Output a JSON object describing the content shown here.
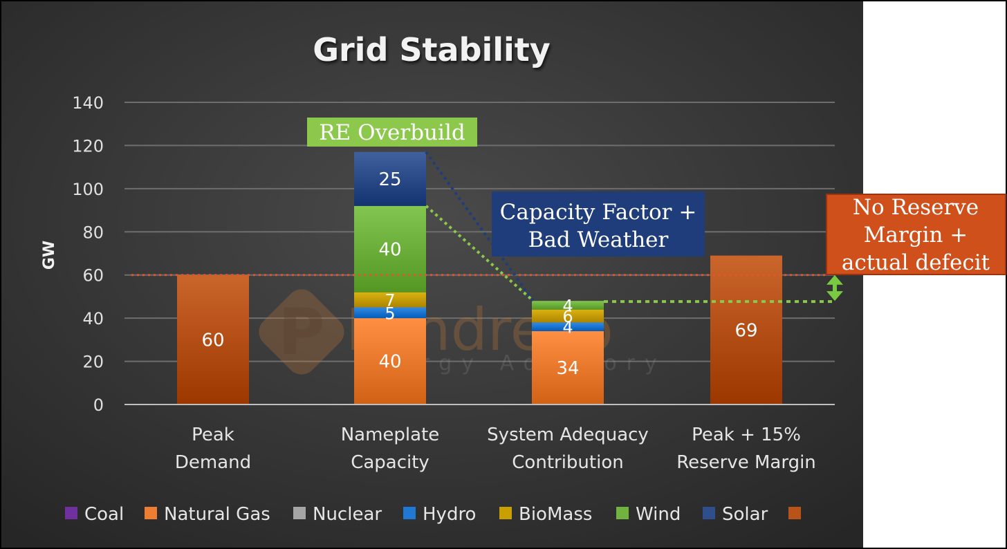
{
  "chart_data": {
    "type": "bar",
    "stacked": true,
    "title": "Grid Stability",
    "ylabel": "GW",
    "xlabel": "",
    "ylim": [
      0,
      140
    ],
    "yticks": [
      0,
      20,
      40,
      60,
      80,
      100,
      120,
      140
    ],
    "grid": true,
    "categories": [
      [
        "Peak",
        "Demand"
      ],
      [
        "Nameplate",
        "Capacity"
      ],
      [
        "System Adequacy",
        "Contribution"
      ],
      [
        "Peak + 15%",
        "Reserve Margin"
      ]
    ],
    "series": [
      {
        "name": "Coal",
        "color": "#7030a0",
        "values": [
          0,
          0,
          0,
          0
        ]
      },
      {
        "name": "Natural Gas",
        "color": "#ed7d31",
        "values": [
          0,
          40,
          34,
          0
        ]
      },
      {
        "name": "Nuclear",
        "color": "#a5a5a5",
        "values": [
          0,
          0,
          0,
          0
        ]
      },
      {
        "name": "Hydro",
        "color": "#1f78d4",
        "values": [
          0,
          5,
          4,
          0
        ]
      },
      {
        "name": "BioMass",
        "color": "#c9a000",
        "values": [
          0,
          7,
          6,
          0
        ]
      },
      {
        "name": "Wind",
        "color": "#70b33f",
        "values": [
          0,
          40,
          4,
          0
        ]
      },
      {
        "name": "Solar",
        "color": "#2f4e8c",
        "values": [
          0,
          25,
          0,
          0
        ]
      },
      {
        "name": "",
        "color": "#b8531a",
        "values": [
          60,
          0,
          0,
          69
        ]
      }
    ],
    "reference_line": {
      "value": 60,
      "color": "#e2552a"
    },
    "connector_level": 48,
    "annotations": {
      "re_overbuild": "RE Overbuild",
      "capacity_factor": [
        "Capacity Factor +",
        "Bad Weather"
      ],
      "no_reserve": [
        "No Reserve",
        "Margin +",
        "actual defecit"
      ]
    },
    "watermark": {
      "name": "Pandreco",
      "tagline": "Energy Advisory"
    }
  },
  "colors": {
    "background": "#3a3a3a",
    "callout_green": "#8cc84b",
    "callout_blue": "#1f3d7a",
    "callout_orange": "#d0501c",
    "arrow_green": "#7ac943"
  }
}
